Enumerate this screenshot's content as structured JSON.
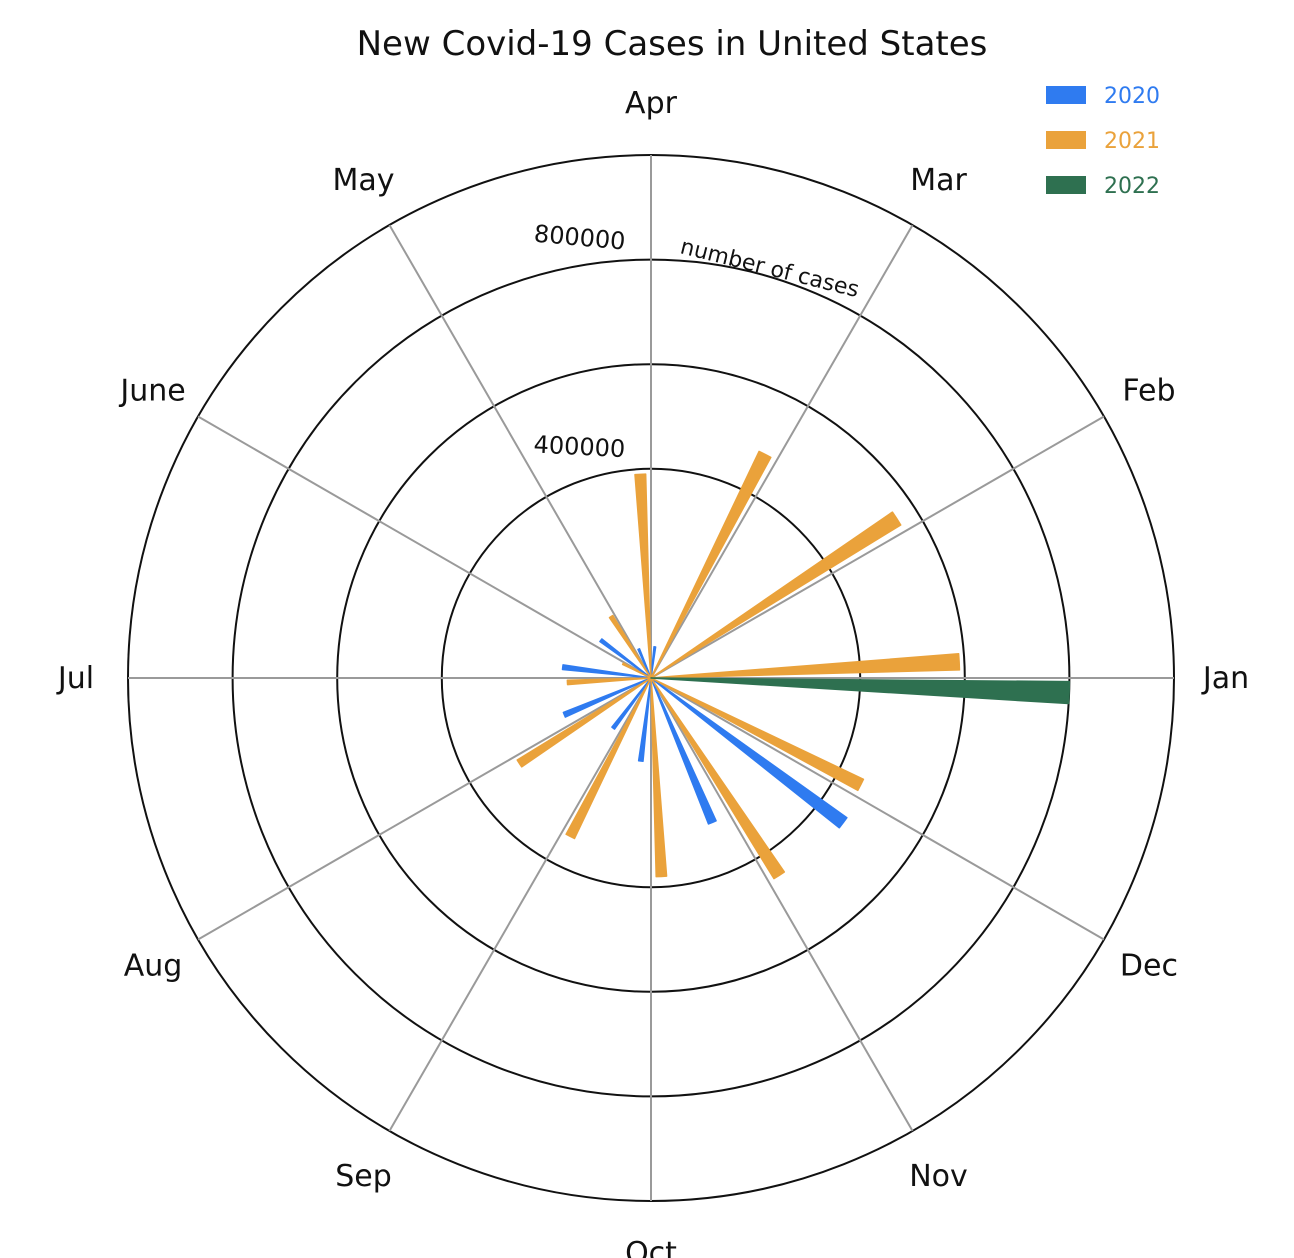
{
  "chart_data": {
    "type": "bar",
    "subtype": "polar",
    "title": "New Covid-19 Cases in United States",
    "radial_axis_label": "number of cases",
    "radial_ticks": [
      400000,
      800000
    ],
    "radial_max": 1000000,
    "grid": true,
    "legend_position": "top-right",
    "categories": [
      "Jan",
      "Feb",
      "Mar",
      "Apr",
      "May",
      "June",
      "Jul",
      "Aug",
      "Sep",
      "Oct",
      "Nov",
      "Dec"
    ],
    "series": [
      {
        "name": "2020",
        "color": "#2f7bf0",
        "values": [
          0,
          0,
          0,
          60000,
          60000,
          120000,
          170000,
          180000,
          120000,
          160000,
          300000,
          460000
        ]
      },
      {
        "name": "2021",
        "color": "#eaa23b",
        "values": [
          590000,
          560000,
          480000,
          390000,
          140000,
          60000,
          160000,
          300000,
          340000,
          380000,
          450000,
          450000
        ]
      },
      {
        "name": "2022",
        "color": "#2e7050",
        "values": [
          800000,
          0,
          0,
          0,
          0,
          0,
          0,
          0,
          0,
          0,
          0,
          0
        ]
      }
    ]
  }
}
